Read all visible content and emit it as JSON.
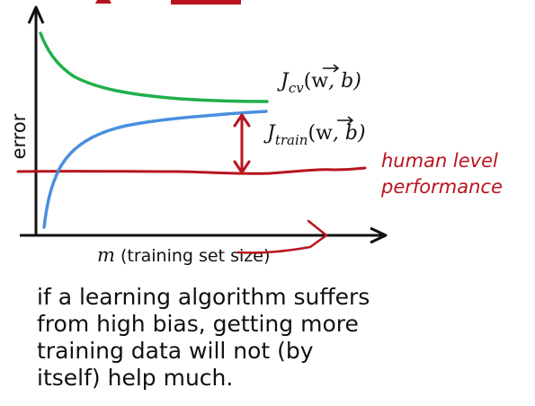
{
  "diagram": {
    "axes": {
      "ylabel": "error",
      "xlabel_var": "m",
      "xlabel_text": " (training set size)"
    },
    "curves": {
      "jcv": {
        "symbol": "J",
        "subscript": "cv",
        "open": "(",
        "arg_w": "w",
        "arg_rest": ", b)",
        "color": "#1fb04a"
      },
      "jtrain": {
        "symbol": "J",
        "subscript": "train",
        "open": "(",
        "arg_w": "w",
        "arg_rest": ", b)",
        "color": "#4a8fe0"
      },
      "human": {
        "line1": "human level",
        "line2": "performance",
        "color": "#b8141f"
      }
    },
    "caption": [
      "if a learning algorithm suffers",
      "from high bias, getting more",
      "training data will not (by",
      "itself) help much."
    ]
  }
}
